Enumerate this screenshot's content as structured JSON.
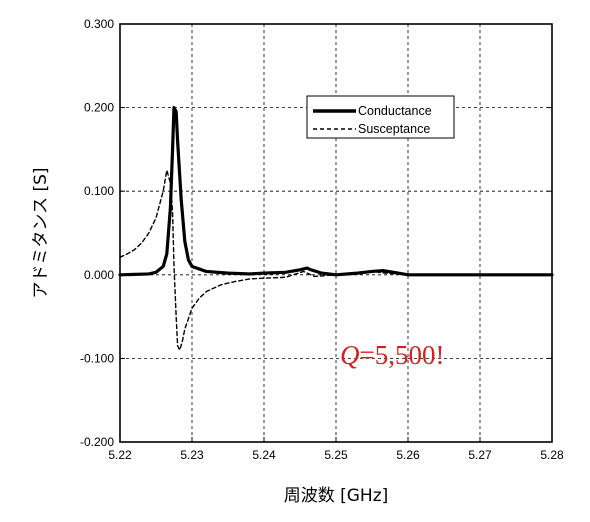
{
  "chart_data": {
    "type": "line",
    "xlabel": "周波数 [GHz]",
    "ylabel": "アドミタンス [S]",
    "xlim": [
      5.22,
      5.28
    ],
    "ylim": [
      -0.2,
      0.3
    ],
    "x_ticks": [
      "5.22",
      "5.23",
      "5.24",
      "5.25",
      "5.26",
      "5.27",
      "5.28"
    ],
    "y_ticks": [
      "-0.200",
      "-0.100",
      "0.000",
      "0.100",
      "0.200",
      "0.300"
    ],
    "grid": true,
    "legend_position": "top-right",
    "annotation": {
      "italic_part": "Q",
      "rest": "=5,500!",
      "color": "#d42020"
    },
    "series": [
      {
        "name": "Conductance",
        "style": "solid-thick",
        "x": [
          5.22,
          5.224,
          5.225,
          5.226,
          5.2265,
          5.227,
          5.2273,
          5.2275,
          5.2278,
          5.228,
          5.2285,
          5.229,
          5.2295,
          5.23,
          5.232,
          5.235,
          5.238,
          5.24,
          5.243,
          5.245,
          5.246,
          5.2465,
          5.248,
          5.25,
          5.253,
          5.255,
          5.2565,
          5.258,
          5.26,
          5.265,
          5.27,
          5.275,
          5.28
        ],
        "values": [
          0.0,
          0.001,
          0.003,
          0.01,
          0.025,
          0.08,
          0.15,
          0.2,
          0.195,
          0.16,
          0.09,
          0.04,
          0.018,
          0.01,
          0.004,
          0.002,
          0.001,
          0.002,
          0.003,
          0.006,
          0.008,
          0.006,
          0.002,
          0.0,
          0.002,
          0.004,
          0.005,
          0.003,
          0.0,
          0.0,
          0.0,
          0.0,
          0.0
        ]
      },
      {
        "name": "Susceptance",
        "style": "dashed",
        "x": [
          5.22,
          5.221,
          5.222,
          5.223,
          5.224,
          5.225,
          5.226,
          5.2265,
          5.227,
          5.2273,
          5.2275,
          5.2278,
          5.228,
          5.2283,
          5.2287,
          5.229,
          5.23,
          5.231,
          5.232,
          5.234,
          5.236,
          5.238,
          5.24,
          5.243,
          5.2455,
          5.247,
          5.25,
          5.255,
          5.257,
          5.26,
          5.265,
          5.27,
          5.28
        ],
        "values": [
          0.021,
          0.025,
          0.03,
          0.038,
          0.05,
          0.068,
          0.1,
          0.125,
          0.11,
          0.075,
          0.01,
          -0.05,
          -0.085,
          -0.09,
          -0.078,
          -0.065,
          -0.04,
          -0.028,
          -0.02,
          -0.012,
          -0.008,
          -0.005,
          -0.004,
          -0.003,
          0.004,
          -0.002,
          0.0,
          0.004,
          0.002,
          0.0,
          0.0,
          0.0,
          0.0
        ]
      }
    ]
  }
}
